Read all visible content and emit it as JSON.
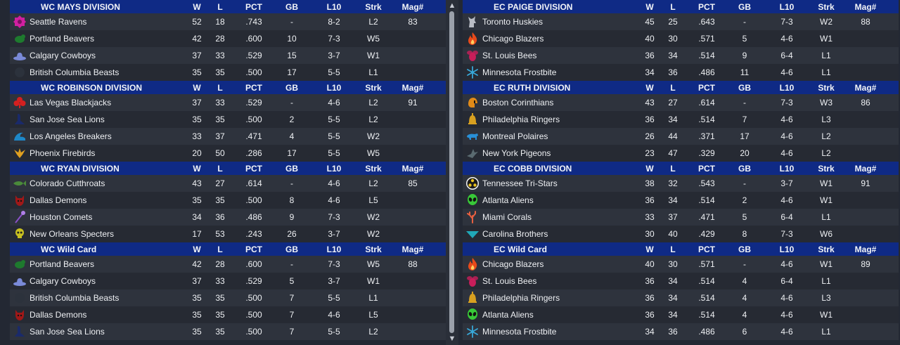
{
  "columns": {
    "w": "W",
    "l": "L",
    "pct": "PCT",
    "gb": "GB",
    "l10": "L10",
    "strk": "Strk",
    "mag": "Mag#"
  },
  "panels": [
    {
      "id": "wc",
      "sections": [
        {
          "title": "WC MAYS DIVISION",
          "teams": [
            {
              "name": "Seattle Ravens",
              "w": "52",
              "l": "18",
              "pct": ".743",
              "gb": "-",
              "l10": "8-2",
              "strk": "L2",
              "mag": "83",
              "logo": "magenta-emblem-icon",
              "color": "#d020a0"
            },
            {
              "name": "Portland Beavers",
              "w": "42",
              "l": "28",
              "pct": ".600",
              "gb": "10",
              "l10": "7-3",
              "strk": "W5",
              "mag": "",
              "logo": "beaver-icon",
              "color": "#1e7a2e"
            },
            {
              "name": "Calgary Cowboys",
              "w": "37",
              "l": "33",
              "pct": ".529",
              "gb": "15",
              "l10": "3-7",
              "strk": "W1",
              "mag": "",
              "logo": "cowboy-hat-icon",
              "color": "#7a8ad8"
            },
            {
              "name": "British Columbia Beasts",
              "w": "35",
              "l": "35",
              "pct": ".500",
              "gb": "17",
              "l10": "5-5",
              "strk": "L1",
              "mag": "",
              "logo": "beast-icon",
              "color": "#2c323c"
            }
          ]
        },
        {
          "title": "WC ROBINSON DIVISION",
          "teams": [
            {
              "name": "Las Vegas Blackjacks",
              "w": "37",
              "l": "33",
              "pct": ".529",
              "gb": "-",
              "l10": "4-6",
              "strk": "L2",
              "mag": "91",
              "logo": "club-suit-icon",
              "color": "#d42020"
            },
            {
              "name": "San Jose Sea Lions",
              "w": "35",
              "l": "35",
              "pct": ".500",
              "gb": "2",
              "l10": "5-5",
              "strk": "L2",
              "mag": "",
              "logo": "sea-lion-icon",
              "color": "#1a2a6a"
            },
            {
              "name": "Los Angeles Breakers",
              "w": "33",
              "l": "37",
              "pct": ".471",
              "gb": "4",
              "l10": "5-5",
              "strk": "W2",
              "mag": "",
              "logo": "wave-icon",
              "color": "#1e88c8"
            },
            {
              "name": "Phoenix Firebirds",
              "w": "20",
              "l": "50",
              "pct": ".286",
              "gb": "17",
              "l10": "5-5",
              "strk": "W5",
              "mag": "",
              "logo": "firebird-icon",
              "color": "#e0a020"
            }
          ]
        },
        {
          "title": "WC RYAN DIVISION",
          "teams": [
            {
              "name": "Colorado Cutthroats",
              "w": "43",
              "l": "27",
              "pct": ".614",
              "gb": "-",
              "l10": "4-6",
              "strk": "L2",
              "mag": "85",
              "logo": "fish-icon",
              "color": "#4a8a3a"
            },
            {
              "name": "Dallas Demons",
              "w": "35",
              "l": "35",
              "pct": ".500",
              "gb": "8",
              "l10": "4-6",
              "strk": "L5",
              "mag": "",
              "logo": "demon-icon",
              "color": "#a01818"
            },
            {
              "name": "Houston Comets",
              "w": "34",
              "l": "36",
              "pct": ".486",
              "gb": "9",
              "l10": "7-3",
              "strk": "W2",
              "mag": "",
              "logo": "comet-icon",
              "color": "#3a4050"
            },
            {
              "name": "New Orleans Specters",
              "w": "17",
              "l": "53",
              "pct": ".243",
              "gb": "26",
              "l10": "3-7",
              "strk": "W2",
              "mag": "",
              "logo": "skull-icon",
              "color": "#c8c020"
            }
          ]
        },
        {
          "title": "WC  Wild Card",
          "teams": [
            {
              "name": "Portland Beavers",
              "w": "42",
              "l": "28",
              "pct": ".600",
              "gb": "-",
              "l10": "7-3",
              "strk": "W5",
              "mag": "88",
              "logo": "beaver-icon",
              "color": "#1e7a2e"
            },
            {
              "name": "Calgary Cowboys",
              "w": "37",
              "l": "33",
              "pct": ".529",
              "gb": "5",
              "l10": "3-7",
              "strk": "W1",
              "mag": "",
              "logo": "cowboy-hat-icon",
              "color": "#7a8ad8"
            },
            {
              "name": "British Columbia Beasts",
              "w": "35",
              "l": "35",
              "pct": ".500",
              "gb": "7",
              "l10": "5-5",
              "strk": "L1",
              "mag": "",
              "logo": "beast-icon",
              "color": "#2c323c"
            },
            {
              "name": "Dallas Demons",
              "w": "35",
              "l": "35",
              "pct": ".500",
              "gb": "7",
              "l10": "4-6",
              "strk": "L5",
              "mag": "",
              "logo": "demon-icon",
              "color": "#a01818"
            },
            {
              "name": "San Jose Sea Lions",
              "w": "35",
              "l": "35",
              "pct": ".500",
              "gb": "7",
              "l10": "5-5",
              "strk": "L2",
              "mag": "",
              "logo": "sea-lion-icon",
              "color": "#1a2a6a"
            }
          ]
        }
      ]
    },
    {
      "id": "ec",
      "sections": [
        {
          "title": "EC PAIGE DIVISION",
          "teams": [
            {
              "name": "Toronto Huskies",
              "w": "45",
              "l": "25",
              "pct": ".643",
              "gb": "-",
              "l10": "7-3",
              "strk": "W2",
              "mag": "88",
              "logo": "husky-icon",
              "color": "#b8bcc4"
            },
            {
              "name": "Chicago Blazers",
              "w": "40",
              "l": "30",
              "pct": ".571",
              "gb": "5",
              "l10": "4-6",
              "strk": "W1",
              "mag": "",
              "logo": "flame-icon",
              "color": "#e84a1a"
            },
            {
              "name": "St. Louis Bees",
              "w": "36",
              "l": "34",
              "pct": ".514",
              "gb": "9",
              "l10": "6-4",
              "strk": "L1",
              "mag": "",
              "logo": "bee-icon",
              "color": "#c81e5a"
            },
            {
              "name": "Minnesota Frostbite",
              "w": "34",
              "l": "36",
              "pct": ".486",
              "gb": "11",
              "l10": "4-6",
              "strk": "L1",
              "mag": "",
              "logo": "snowflake-icon",
              "color": "#38a8d8"
            }
          ]
        },
        {
          "title": "EC RUTH DIVISION",
          "teams": [
            {
              "name": "Boston Corinthians",
              "w": "43",
              "l": "27",
              "pct": ".614",
              "gb": "-",
              "l10": "7-3",
              "strk": "W3",
              "mag": "86",
              "logo": "helmet-icon",
              "color": "#e08a18"
            },
            {
              "name": "Philadelphia Ringers",
              "w": "36",
              "l": "34",
              "pct": ".514",
              "gb": "7",
              "l10": "4-6",
              "strk": "L3",
              "mag": "",
              "logo": "bell-icon",
              "color": "#d8a020"
            },
            {
              "name": "Montreal Polaires",
              "w": "26",
              "l": "44",
              "pct": ".371",
              "gb": "17",
              "l10": "4-6",
              "strk": "L2",
              "mag": "",
              "logo": "polar-bear-icon",
              "color": "#2890d8"
            },
            {
              "name": "New York Pigeons",
              "w": "23",
              "l": "47",
              "pct": ".329",
              "gb": "20",
              "l10": "4-6",
              "strk": "L2",
              "mag": "",
              "logo": "pigeon-icon",
              "color": "#5a6a70"
            }
          ]
        },
        {
          "title": "EC COBB DIVISION",
          "teams": [
            {
              "name": "Tennessee Tri-Stars",
              "w": "38",
              "l": "32",
              "pct": ".543",
              "gb": "-",
              "l10": "3-7",
              "strk": "W1",
              "mag": "91",
              "logo": "tri-star-icon",
              "color": "#e8c020"
            },
            {
              "name": "Atlanta Aliens",
              "w": "36",
              "l": "34",
              "pct": ".514",
              "gb": "2",
              "l10": "4-6",
              "strk": "W1",
              "mag": "",
              "logo": "alien-icon",
              "color": "#38c838"
            },
            {
              "name": "Miami Corals",
              "w": "33",
              "l": "37",
              "pct": ".471",
              "gb": "5",
              "l10": "6-4",
              "strk": "L1",
              "mag": "",
              "logo": "coral-icon",
              "color": "#e86040"
            },
            {
              "name": "Carolina Brothers",
              "w": "30",
              "l": "40",
              "pct": ".429",
              "gb": "8",
              "l10": "7-3",
              "strk": "W6",
              "mag": "",
              "logo": "chevron-icon",
              "color": "#20a8b8"
            }
          ]
        },
        {
          "title": "EC  Wild Card",
          "teams": [
            {
              "name": "Chicago Blazers",
              "w": "40",
              "l": "30",
              "pct": ".571",
              "gb": "-",
              "l10": "4-6",
              "strk": "W1",
              "mag": "89",
              "logo": "flame-icon",
              "color": "#e84a1a"
            },
            {
              "name": "St. Louis Bees",
              "w": "36",
              "l": "34",
              "pct": ".514",
              "gb": "4",
              "l10": "6-4",
              "strk": "L1",
              "mag": "",
              "logo": "bee-icon",
              "color": "#c81e5a"
            },
            {
              "name": "Philadelphia Ringers",
              "w": "36",
              "l": "34",
              "pct": ".514",
              "gb": "4",
              "l10": "4-6",
              "strk": "L3",
              "mag": "",
              "logo": "bell-icon",
              "color": "#d8a020"
            },
            {
              "name": "Atlanta Aliens",
              "w": "36",
              "l": "34",
              "pct": ".514",
              "gb": "4",
              "l10": "4-6",
              "strk": "W1",
              "mag": "",
              "logo": "alien-icon",
              "color": "#38c838"
            },
            {
              "name": "Minnesota Frostbite",
              "w": "34",
              "l": "36",
              "pct": ".486",
              "gb": "6",
              "l10": "4-6",
              "strk": "L1",
              "mag": "",
              "logo": "snowflake-icon",
              "color": "#38a8d8"
            }
          ]
        }
      ]
    }
  ]
}
